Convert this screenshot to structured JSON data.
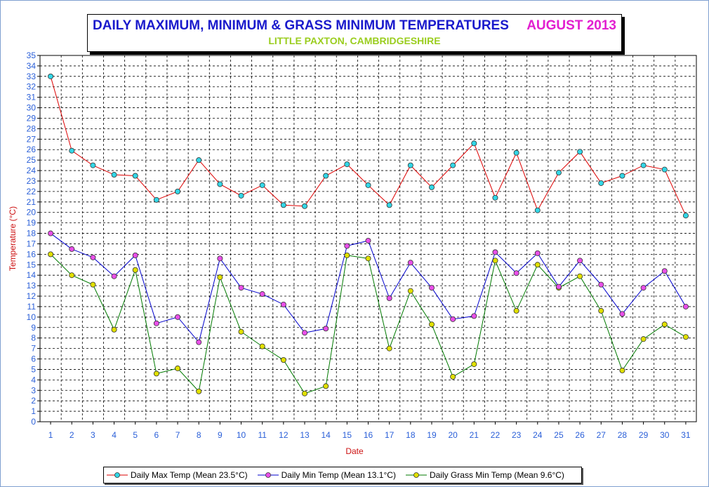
{
  "title": {
    "main": "DAILY MAXIMUM, MINIMUM & GRASS MINIMUM TEMPERATURES",
    "date": "AUGUST 2013",
    "subtitle": "LITTLE PAXTON, CAMBRIDGESHIRE"
  },
  "colors": {
    "title": "#1a1acc",
    "date": "#e21fd0",
    "subtitle": "#9acd1e",
    "axis_labels": "#cc1111",
    "tick_labels": "#2a5fd8",
    "max_line": "#dd0000",
    "max_marker": "#33d6e6",
    "min_line": "#0000cc",
    "min_marker": "#e84fe8",
    "grass_line": "#007a00",
    "grass_marker": "#e0e000"
  },
  "chart_data": {
    "type": "line",
    "xlabel": "Date",
    "ylabel": "Temperature (°C)",
    "ylim": [
      0,
      35
    ],
    "grid": true,
    "legend_placement": "bottom",
    "x": [
      1,
      2,
      3,
      4,
      5,
      6,
      7,
      8,
      9,
      10,
      11,
      12,
      13,
      14,
      15,
      16,
      17,
      18,
      19,
      20,
      21,
      22,
      23,
      24,
      25,
      26,
      27,
      28,
      29,
      30,
      31
    ],
    "series": [
      {
        "name": "Daily Max Temp (Mean 23.5°C)",
        "values": [
          33.0,
          25.9,
          24.5,
          23.6,
          23.5,
          21.2,
          22.0,
          25.0,
          22.7,
          21.6,
          22.6,
          20.7,
          20.6,
          23.5,
          24.6,
          22.6,
          20.7,
          24.5,
          22.4,
          24.5,
          26.6,
          21.4,
          25.7,
          20.2,
          23.8,
          25.8,
          22.8,
          23.5,
          24.5,
          24.1,
          19.7
        ]
      },
      {
        "name": "Daily Min Temp (Mean 13.1°C)",
        "values": [
          18.0,
          16.5,
          15.7,
          13.9,
          15.9,
          9.4,
          10.0,
          7.6,
          15.6,
          12.8,
          12.2,
          11.2,
          8.5,
          8.9,
          16.8,
          17.3,
          11.8,
          15.2,
          12.8,
          9.8,
          10.1,
          16.2,
          14.2,
          16.1,
          12.9,
          15.4,
          13.1,
          10.3,
          12.8,
          14.4,
          11.0
        ]
      },
      {
        "name": "Daily Grass Min Temp (Mean 9.6°C)",
        "values": [
          16.0,
          14.0,
          13.1,
          8.8,
          14.5,
          4.6,
          5.1,
          2.9,
          13.8,
          8.6,
          7.2,
          5.9,
          2.7,
          3.4,
          15.9,
          15.6,
          7.0,
          12.5,
          9.3,
          4.3,
          5.5,
          15.4,
          10.6,
          15.0,
          12.8,
          13.9,
          10.6,
          4.9,
          7.9,
          9.3,
          8.1
        ]
      }
    ]
  }
}
